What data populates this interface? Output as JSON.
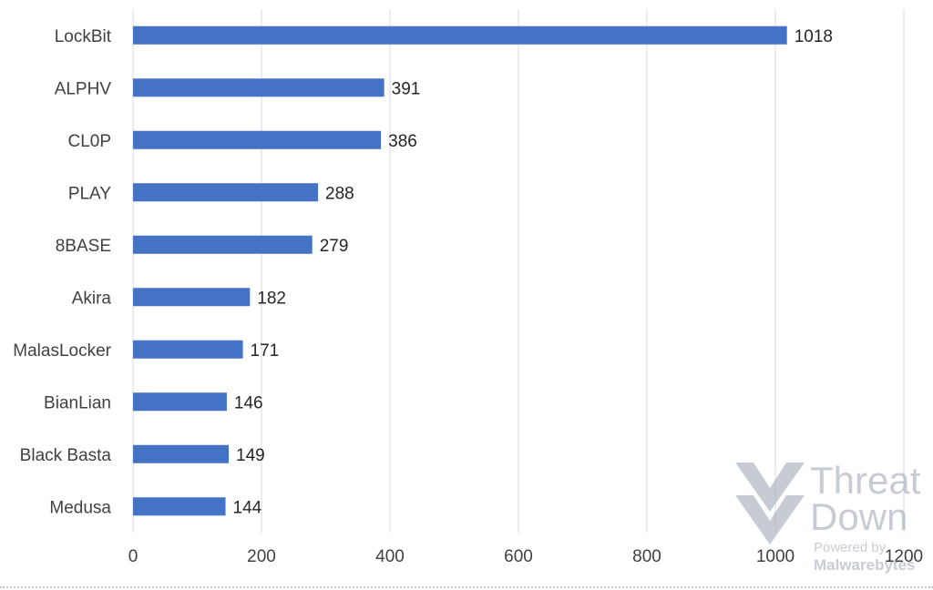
{
  "chart_data": {
    "type": "bar",
    "orientation": "horizontal",
    "categories": [
      "LockBit",
      "ALPHV",
      "CL0P",
      "PLAY",
      "8BASE",
      "Akira",
      "MalasLocker",
      "BianLian",
      "Black Basta",
      "Medusa"
    ],
    "values": [
      1018,
      391,
      386,
      288,
      279,
      182,
      171,
      146,
      149,
      144
    ],
    "xlim": [
      0,
      1200
    ],
    "xticks": [
      0,
      200,
      400,
      600,
      800,
      1000,
      1200
    ],
    "grid": true,
    "bar_color": "#4472c4"
  },
  "watermark": {
    "brand_line1": "Threat",
    "brand_line2": "Down",
    "powered_by": "Powered by",
    "company": "Malwarebytes"
  }
}
